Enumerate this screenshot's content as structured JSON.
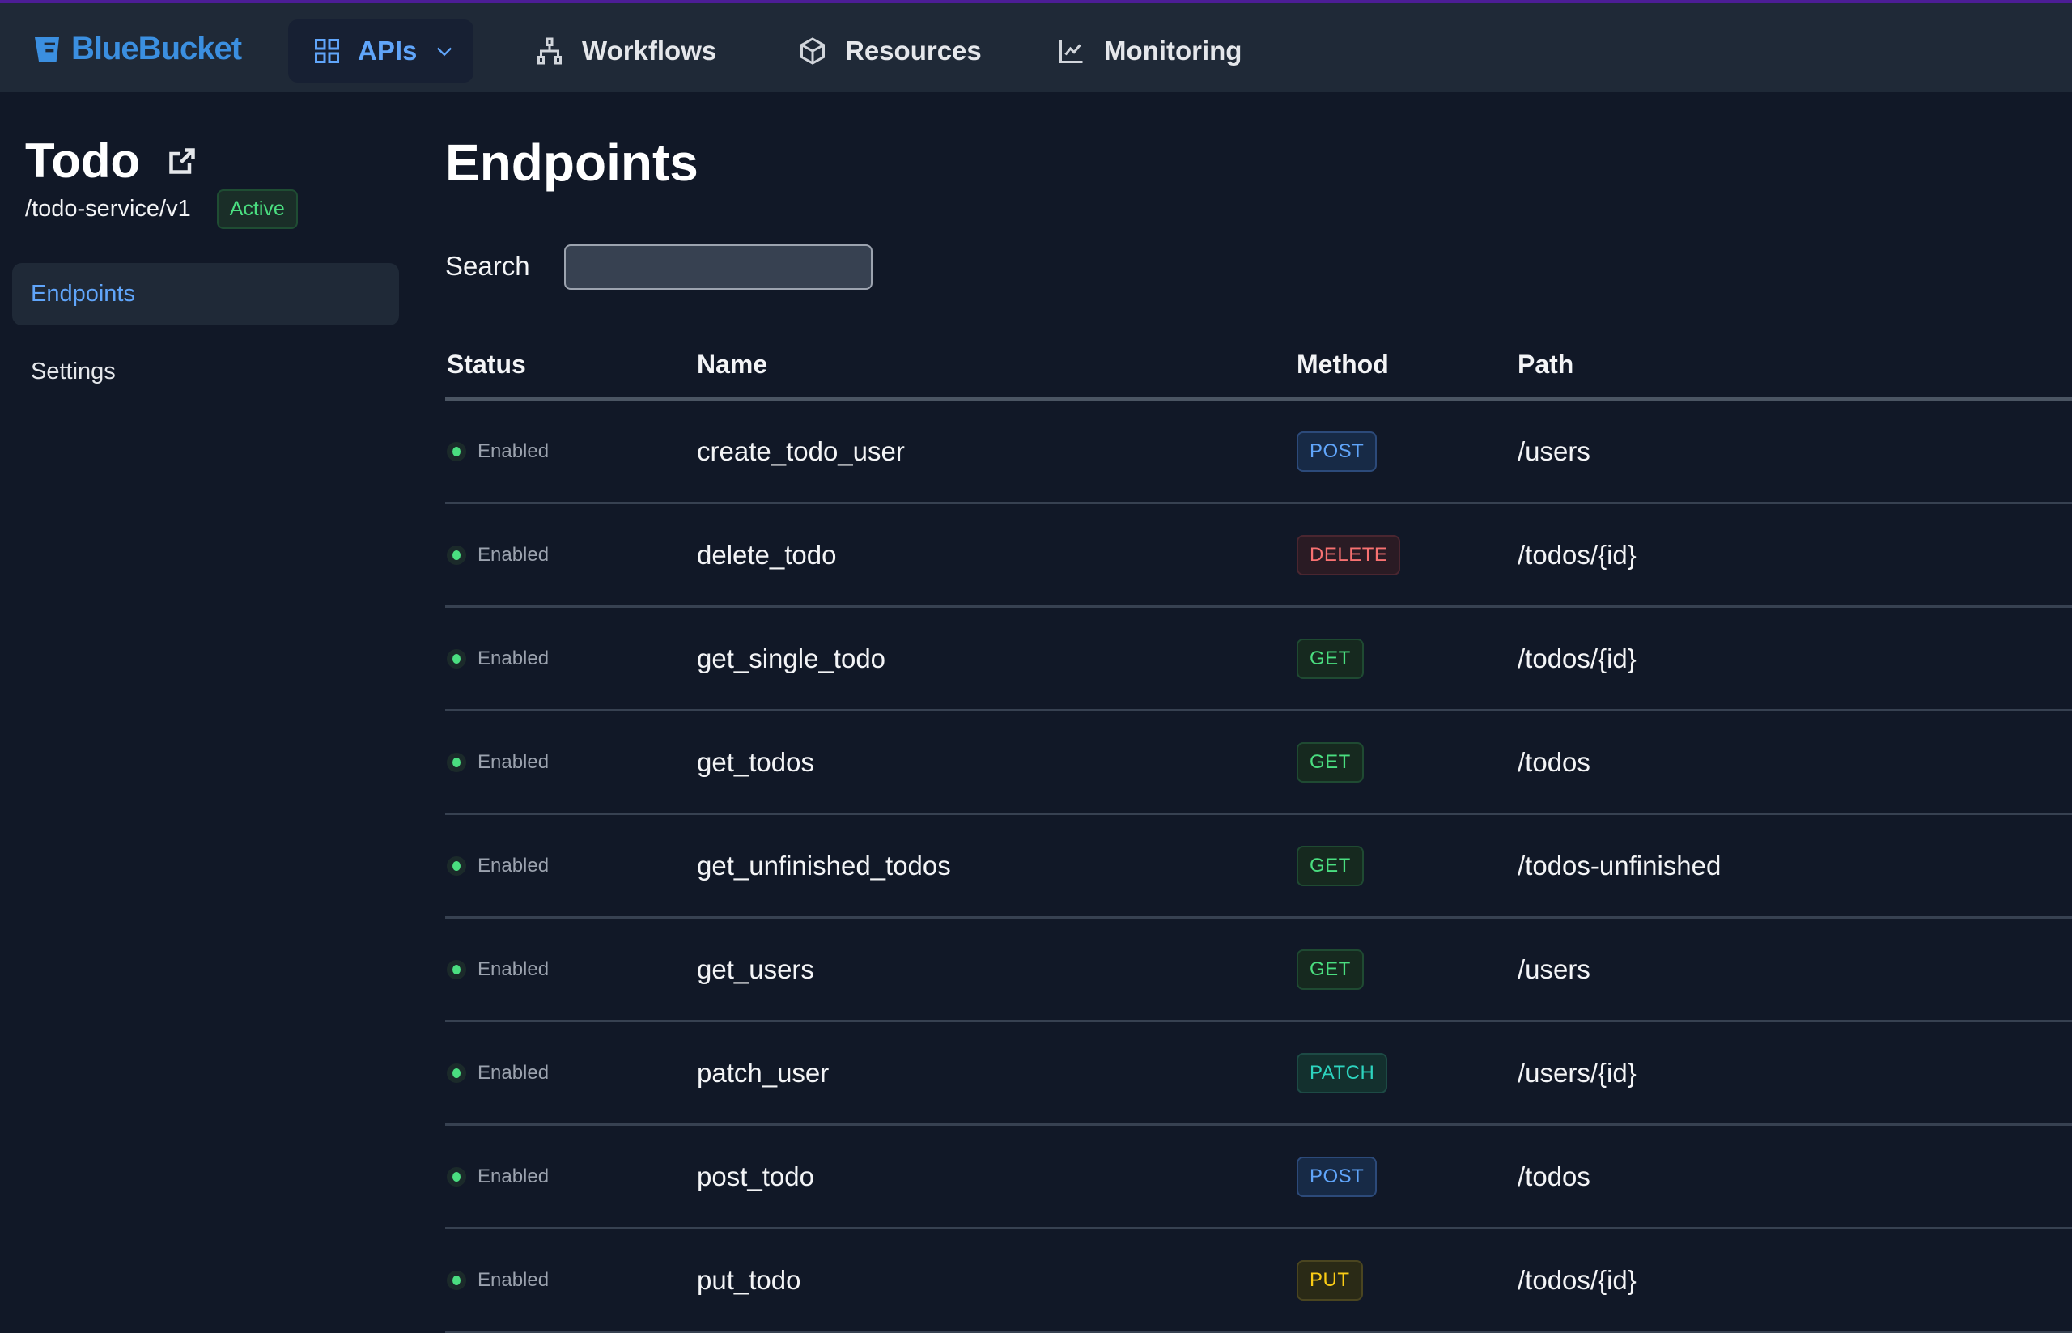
{
  "topbar": {
    "brand": "BlueBucket",
    "nav": [
      {
        "label": "APIs",
        "icon": "grid-icon",
        "active": true
      },
      {
        "label": "Workflows",
        "icon": "sitemap-icon"
      },
      {
        "label": "Resources",
        "icon": "cube-icon"
      },
      {
        "label": "Monitoring",
        "icon": "chart-line-icon"
      }
    ]
  },
  "sidebar": {
    "title": "Todo",
    "path": "/todo-service/v1",
    "status": "Active",
    "items": [
      {
        "label": "Endpoints",
        "active": true
      },
      {
        "label": "Settings"
      }
    ]
  },
  "main": {
    "title": "Endpoints",
    "search": {
      "label": "Search",
      "value": "",
      "placeholder": ""
    },
    "columns": [
      "Status",
      "Name",
      "Method",
      "Path"
    ],
    "rows": [
      {
        "status": "Enabled",
        "name": "create_todo_user",
        "method": "POST",
        "path": "/users"
      },
      {
        "status": "Enabled",
        "name": "delete_todo",
        "method": "DELETE",
        "path": "/todos/{id}"
      },
      {
        "status": "Enabled",
        "name": "get_single_todo",
        "method": "GET",
        "path": "/todos/{id}"
      },
      {
        "status": "Enabled",
        "name": "get_todos",
        "method": "GET",
        "path": "/todos"
      },
      {
        "status": "Enabled",
        "name": "get_unfinished_todos",
        "method": "GET",
        "path": "/todos-unfinished"
      },
      {
        "status": "Enabled",
        "name": "get_users",
        "method": "GET",
        "path": "/users"
      },
      {
        "status": "Enabled",
        "name": "patch_user",
        "method": "PATCH",
        "path": "/users/{id}"
      },
      {
        "status": "Enabled",
        "name": "post_todo",
        "method": "POST",
        "path": "/todos"
      },
      {
        "status": "Enabled",
        "name": "put_todo",
        "method": "PUT",
        "path": "/todos/{id}"
      }
    ]
  },
  "colors": {
    "POST": {
      "fg": "#60a5fa",
      "bg": "#172a46",
      "border": "#2c4a7a"
    },
    "DELETE": {
      "fg": "#f87171",
      "bg": "#2a1b24",
      "border": "#4a2630"
    },
    "GET": {
      "fg": "#4ade80",
      "bg": "#16291f",
      "border": "#1f4a32"
    },
    "PATCH": {
      "fg": "#2dd4bf",
      "bg": "#13302e",
      "border": "#1d4a45"
    },
    "PUT": {
      "fg": "#facc15",
      "bg": "#2a2a16",
      "border": "#4a4520"
    }
  }
}
